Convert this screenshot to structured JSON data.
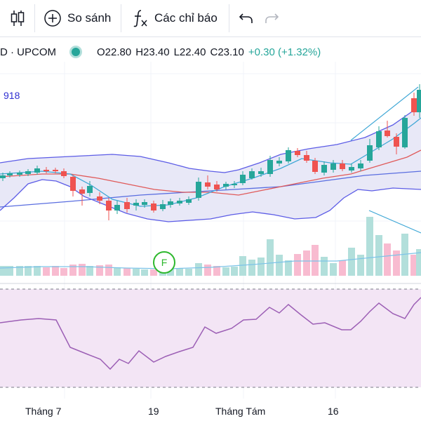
{
  "toolbar": {
    "compare_label": "So sánh",
    "indicators_label": "Các chỉ báo"
  },
  "legend": {
    "symbol_tail": "D · UPCOM",
    "open": "O22.80",
    "high": "H23.40",
    "low": "L22.40",
    "close": "C23.10",
    "change": "+0.30 (+1.32%)",
    "indicator_value": "918"
  },
  "marker": {
    "label": "F"
  },
  "x_axis": [
    "Tháng 7",
    "19",
    "Tháng Tám",
    "16"
  ],
  "colors": {
    "up": "#26a69a",
    "down": "#ef5350",
    "up_volume": "#b2dfdb",
    "down_volume": "#f8bbd0",
    "band_fill": "#e8e8f7",
    "band_line": "#5c5ce6",
    "ma_red": "#e05a5a",
    "ma_blue": "#5a6ee0",
    "ma_cyan": "#3fa7d6",
    "rsi_line": "#9c5fb5",
    "rsi_bg": "#f3e5f5",
    "marker": "#2eb82e"
  }
}
